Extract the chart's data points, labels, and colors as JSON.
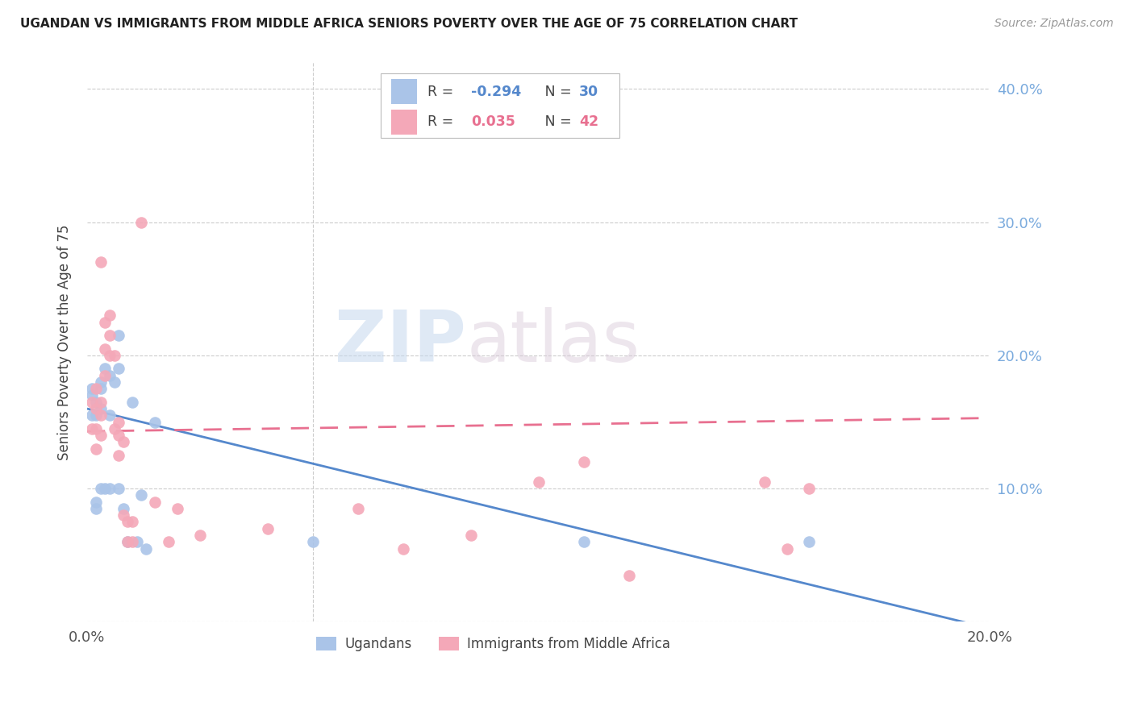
{
  "title": "UGANDAN VS IMMIGRANTS FROM MIDDLE AFRICA SENIORS POVERTY OVER THE AGE OF 75 CORRELATION CHART",
  "source": "Source: ZipAtlas.com",
  "ylabel": "Seniors Poverty Over the Age of 75",
  "xlim": [
    0.0,
    0.2
  ],
  "ylim": [
    0.0,
    0.42
  ],
  "yticks": [
    0.0,
    0.1,
    0.2,
    0.3,
    0.4
  ],
  "ytick_labels": [
    "",
    "10.0%",
    "20.0%",
    "30.0%",
    "40.0%"
  ],
  "xticks": [
    0.0,
    0.05,
    0.1,
    0.15,
    0.2
  ],
  "xtick_labels": [
    "0.0%",
    "",
    "",
    "",
    "20.0%"
  ],
  "background_color": "#ffffff",
  "grid_color": "#cccccc",
  "ugandan_color": "#aac4e8",
  "immigrant_color": "#f4a8b8",
  "ugandan_line_color": "#5588cc",
  "immigrant_line_color": "#e87090",
  "legend_ugandan_R": "-0.294",
  "legend_ugandan_N": "30",
  "legend_immigrant_R": "0.035",
  "legend_immigrant_N": "42",
  "watermark_zip": "ZIP",
  "watermark_atlas": "atlas",
  "ugandan_x": [
    0.001,
    0.001,
    0.001,
    0.002,
    0.002,
    0.002,
    0.002,
    0.003,
    0.003,
    0.003,
    0.003,
    0.004,
    0.004,
    0.005,
    0.005,
    0.005,
    0.006,
    0.007,
    0.007,
    0.007,
    0.008,
    0.009,
    0.01,
    0.011,
    0.012,
    0.013,
    0.015,
    0.05,
    0.11,
    0.16
  ],
  "ugandan_y": [
    0.155,
    0.17,
    0.175,
    0.165,
    0.155,
    0.09,
    0.085,
    0.16,
    0.1,
    0.18,
    0.175,
    0.19,
    0.1,
    0.155,
    0.1,
    0.185,
    0.18,
    0.215,
    0.19,
    0.1,
    0.085,
    0.06,
    0.165,
    0.06,
    0.095,
    0.055,
    0.15,
    0.06,
    0.06,
    0.06
  ],
  "immigrant_x": [
    0.001,
    0.001,
    0.002,
    0.002,
    0.002,
    0.002,
    0.003,
    0.003,
    0.003,
    0.003,
    0.004,
    0.004,
    0.004,
    0.005,
    0.005,
    0.005,
    0.006,
    0.006,
    0.007,
    0.007,
    0.007,
    0.008,
    0.008,
    0.009,
    0.009,
    0.01,
    0.01,
    0.012,
    0.015,
    0.018,
    0.02,
    0.025,
    0.04,
    0.06,
    0.07,
    0.085,
    0.1,
    0.11,
    0.12,
    0.15,
    0.155,
    0.16
  ],
  "immigrant_y": [
    0.165,
    0.145,
    0.175,
    0.16,
    0.145,
    0.13,
    0.27,
    0.165,
    0.155,
    0.14,
    0.225,
    0.205,
    0.185,
    0.23,
    0.215,
    0.2,
    0.2,
    0.145,
    0.15,
    0.14,
    0.125,
    0.135,
    0.08,
    0.075,
    0.06,
    0.075,
    0.06,
    0.3,
    0.09,
    0.06,
    0.085,
    0.065,
    0.07,
    0.085,
    0.055,
    0.065,
    0.105,
    0.12,
    0.035,
    0.105,
    0.055,
    0.1
  ],
  "ugandan_trendline_x": [
    0.0,
    0.2
  ],
  "ugandan_trendline_y": [
    0.16,
    -0.005
  ],
  "immigrant_trendline_x": [
    0.0,
    0.2
  ],
  "immigrant_trendline_y": [
    0.143,
    0.153
  ],
  "vline_x": 0.05
}
